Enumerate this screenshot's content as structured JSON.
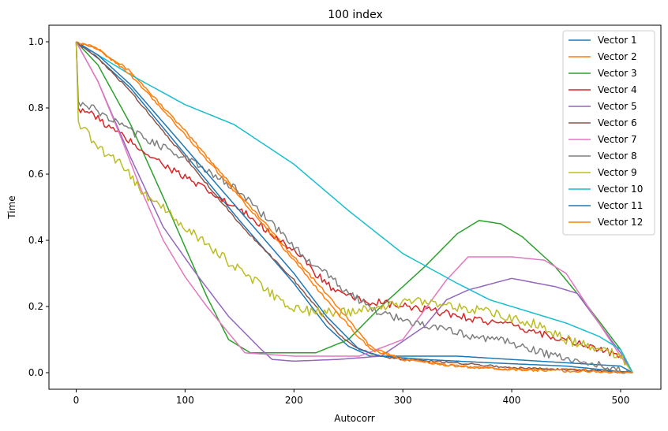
{
  "chart_data": {
    "type": "line",
    "title": "100 index",
    "xlabel": "Autocorr",
    "ylabel": "Time",
    "xlim": [
      -25,
      537
    ],
    "ylim": [
      -0.05,
      1.05
    ],
    "xticks": [
      0,
      100,
      200,
      300,
      400,
      500
    ],
    "yticks": [
      0.0,
      0.2,
      0.4,
      0.6,
      0.8,
      1.0
    ],
    "xtick_labels": [
      "0",
      "100",
      "200",
      "300",
      "400",
      "500"
    ],
    "ytick_labels": [
      "0.0",
      "0.2",
      "0.4",
      "0.6",
      "0.8",
      "1.0"
    ],
    "grid": false,
    "legend_position": "top-right",
    "series": [
      {
        "name": "Vector 1",
        "color": "#1f77b4",
        "points": [
          [
            0,
            1.0
          ],
          [
            20,
            0.95
          ],
          [
            50,
            0.86
          ],
          [
            100,
            0.66
          ],
          [
            150,
            0.46
          ],
          [
            200,
            0.27
          ],
          [
            230,
            0.14
          ],
          [
            250,
            0.08
          ],
          [
            270,
            0.05
          ],
          [
            300,
            0.05
          ],
          [
            350,
            0.05
          ],
          [
            400,
            0.04
          ],
          [
            450,
            0.03
          ],
          [
            500,
            0.02
          ],
          [
            511,
            0.0
          ]
        ]
      },
      {
        "name": "Vector 2",
        "color": "#ff7f0e",
        "points": [
          [
            0,
            1.0
          ],
          [
            20,
            0.98
          ],
          [
            50,
            0.91
          ],
          [
            100,
            0.73
          ],
          [
            150,
            0.54
          ],
          [
            200,
            0.35
          ],
          [
            240,
            0.2
          ],
          [
            270,
            0.08
          ],
          [
            300,
            0.04
          ],
          [
            350,
            0.02
          ],
          [
            400,
            0.01
          ],
          [
            450,
            0.01
          ],
          [
            511,
            0.0
          ]
        ]
      },
      {
        "name": "Vector 3",
        "color": "#2ca02c",
        "points": [
          [
            0,
            1.0
          ],
          [
            20,
            0.93
          ],
          [
            50,
            0.75
          ],
          [
            80,
            0.53
          ],
          [
            100,
            0.38
          ],
          [
            120,
            0.23
          ],
          [
            140,
            0.1
          ],
          [
            160,
            0.06
          ],
          [
            200,
            0.06
          ],
          [
            220,
            0.06
          ],
          [
            250,
            0.1
          ],
          [
            280,
            0.2
          ],
          [
            320,
            0.32
          ],
          [
            350,
            0.42
          ],
          [
            370,
            0.46
          ],
          [
            390,
            0.45
          ],
          [
            410,
            0.41
          ],
          [
            440,
            0.32
          ],
          [
            470,
            0.2
          ],
          [
            500,
            0.07
          ],
          [
            511,
            0.0
          ]
        ]
      },
      {
        "name": "Vector 4",
        "color": "#d62728",
        "points": [
          [
            0,
            1.0
          ],
          [
            2,
            0.8
          ],
          [
            10,
            0.79
          ],
          [
            40,
            0.72
          ],
          [
            80,
            0.63
          ],
          [
            120,
            0.55
          ],
          [
            160,
            0.47
          ],
          [
            200,
            0.37
          ],
          [
            220,
            0.3
          ],
          [
            240,
            0.24
          ],
          [
            260,
            0.22
          ],
          [
            300,
            0.2
          ],
          [
            340,
            0.18
          ],
          [
            400,
            0.14
          ],
          [
            450,
            0.1
          ],
          [
            500,
            0.05
          ],
          [
            511,
            0.0
          ]
        ]
      },
      {
        "name": "Vector 5",
        "color": "#9467bd",
        "points": [
          [
            0,
            1.0
          ],
          [
            20,
            0.88
          ],
          [
            50,
            0.65
          ],
          [
            80,
            0.44
          ],
          [
            110,
            0.3
          ],
          [
            140,
            0.17
          ],
          [
            170,
            0.07
          ],
          [
            180,
            0.04
          ],
          [
            200,
            0.035
          ],
          [
            240,
            0.04
          ],
          [
            280,
            0.05
          ],
          [
            320,
            0.14
          ],
          [
            340,
            0.22
          ],
          [
            360,
            0.25
          ],
          [
            400,
            0.285
          ],
          [
            440,
            0.26
          ],
          [
            460,
            0.24
          ],
          [
            480,
            0.15
          ],
          [
            500,
            0.06
          ],
          [
            511,
            0.0
          ]
        ]
      },
      {
        "name": "Vector 6",
        "color": "#8c564b",
        "points": [
          [
            0,
            1.0
          ],
          [
            20,
            0.95
          ],
          [
            50,
            0.85
          ],
          [
            100,
            0.65
          ],
          [
            150,
            0.45
          ],
          [
            200,
            0.28
          ],
          [
            240,
            0.12
          ],
          [
            260,
            0.07
          ],
          [
            280,
            0.05
          ],
          [
            300,
            0.04
          ],
          [
            350,
            0.03
          ],
          [
            400,
            0.015
          ],
          [
            450,
            0.01
          ],
          [
            511,
            0.0
          ]
        ]
      },
      {
        "name": "Vector 7",
        "color": "#e377c2",
        "points": [
          [
            0,
            1.0
          ],
          [
            20,
            0.88
          ],
          [
            40,
            0.72
          ],
          [
            60,
            0.55
          ],
          [
            80,
            0.4
          ],
          [
            100,
            0.29
          ],
          [
            120,
            0.2
          ],
          [
            140,
            0.12
          ],
          [
            155,
            0.06
          ],
          [
            200,
            0.05
          ],
          [
            260,
            0.05
          ],
          [
            300,
            0.1
          ],
          [
            340,
            0.28
          ],
          [
            360,
            0.35
          ],
          [
            400,
            0.35
          ],
          [
            430,
            0.34
          ],
          [
            450,
            0.3
          ],
          [
            480,
            0.15
          ],
          [
            500,
            0.05
          ],
          [
            511,
            0.0
          ]
        ]
      },
      {
        "name": "Vector 8",
        "color": "#7f7f7f",
        "points": [
          [
            0,
            1.0
          ],
          [
            2,
            0.82
          ],
          [
            20,
            0.79
          ],
          [
            50,
            0.73
          ],
          [
            100,
            0.65
          ],
          [
            150,
            0.55
          ],
          [
            200,
            0.38
          ],
          [
            250,
            0.24
          ],
          [
            280,
            0.18
          ],
          [
            300,
            0.16
          ],
          [
            350,
            0.12
          ],
          [
            400,
            0.09
          ],
          [
            450,
            0.04
          ],
          [
            500,
            0.01
          ],
          [
            511,
            0.0
          ]
        ]
      },
      {
        "name": "Vector 9",
        "color": "#bcbd22",
        "points": [
          [
            0,
            1.0
          ],
          [
            2,
            0.76
          ],
          [
            20,
            0.68
          ],
          [
            40,
            0.64
          ],
          [
            60,
            0.55
          ],
          [
            100,
            0.44
          ],
          [
            150,
            0.31
          ],
          [
            200,
            0.19
          ],
          [
            240,
            0.18
          ],
          [
            280,
            0.2
          ],
          [
            320,
            0.22
          ],
          [
            380,
            0.18
          ],
          [
            420,
            0.15
          ],
          [
            450,
            0.1
          ],
          [
            480,
            0.07
          ],
          [
            500,
            0.05
          ],
          [
            511,
            0.0
          ]
        ]
      },
      {
        "name": "Vector 10",
        "color": "#17becf",
        "points": [
          [
            0,
            1.0
          ],
          [
            50,
            0.9
          ],
          [
            100,
            0.81
          ],
          [
            145,
            0.75
          ],
          [
            200,
            0.63
          ],
          [
            250,
            0.49
          ],
          [
            300,
            0.36
          ],
          [
            350,
            0.27
          ],
          [
            380,
            0.22
          ],
          [
            420,
            0.18
          ],
          [
            450,
            0.15
          ],
          [
            480,
            0.11
          ],
          [
            500,
            0.07
          ],
          [
            511,
            0.0
          ]
        ]
      },
      {
        "name": "Vector 11",
        "color": "#1f77b4",
        "points": [
          [
            0,
            1.0
          ],
          [
            20,
            0.96
          ],
          [
            50,
            0.87
          ],
          [
            100,
            0.68
          ],
          [
            150,
            0.49
          ],
          [
            200,
            0.3
          ],
          [
            230,
            0.17
          ],
          [
            260,
            0.07
          ],
          [
            280,
            0.05
          ],
          [
            320,
            0.04
          ],
          [
            380,
            0.03
          ],
          [
            450,
            0.02
          ],
          [
            511,
            0.0
          ]
        ]
      },
      {
        "name": "Vector 12",
        "color": "#ff7f0e",
        "points": [
          [
            0,
            1.0
          ],
          [
            20,
            0.98
          ],
          [
            50,
            0.9
          ],
          [
            100,
            0.72
          ],
          [
            150,
            0.53
          ],
          [
            200,
            0.34
          ],
          [
            240,
            0.18
          ],
          [
            270,
            0.07
          ],
          [
            300,
            0.04
          ],
          [
            350,
            0.02
          ],
          [
            400,
            0.01
          ],
          [
            511,
            0.0
          ]
        ]
      }
    ]
  }
}
